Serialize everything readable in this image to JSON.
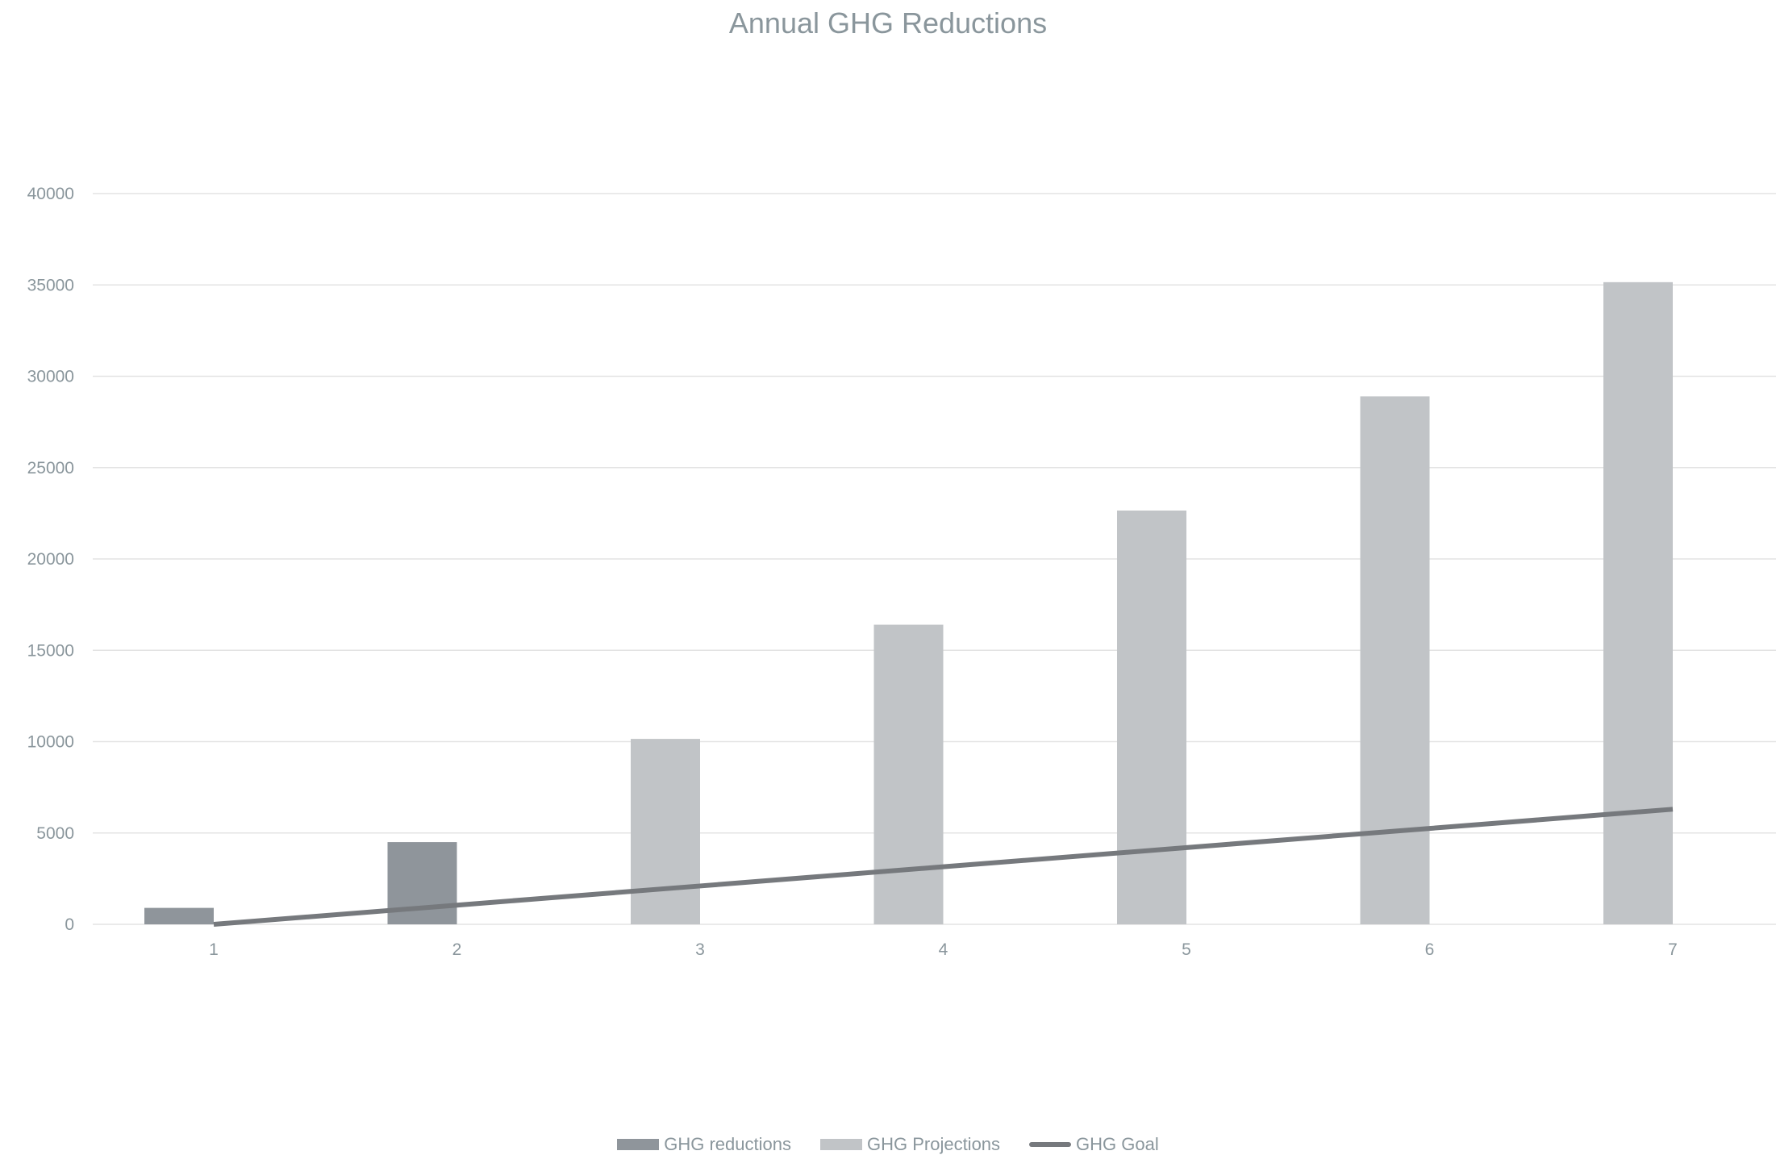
{
  "colors": {
    "reductions": "#8f959b",
    "projections": "#c1c4c7",
    "goal": "#76797d",
    "grid": "#e3e3e3",
    "text": "#8a969c"
  },
  "chart_data": {
    "type": "bar",
    "title": "Annual  GHG Reductions",
    "categories": [
      "1",
      "2",
      "3",
      "4",
      "5",
      "6",
      "7"
    ],
    "ylim": [
      0,
      40000
    ],
    "yticks": [
      0,
      5000,
      10000,
      15000,
      20000,
      25000,
      30000,
      35000,
      40000
    ],
    "grid": true,
    "legend_position": "bottom",
    "series": [
      {
        "name": "GHG reductions",
        "kind": "bar",
        "values": [
          900,
          4500,
          null,
          null,
          null,
          null,
          null
        ]
      },
      {
        "name": "GHG Projections",
        "kind": "bar",
        "values": [
          null,
          null,
          10150,
          16400,
          22650,
          28900,
          35150
        ]
      },
      {
        "name": "GHG Goal",
        "kind": "line",
        "values": [
          0,
          1050,
          2100,
          3150,
          4200,
          5250,
          6300
        ]
      }
    ]
  }
}
